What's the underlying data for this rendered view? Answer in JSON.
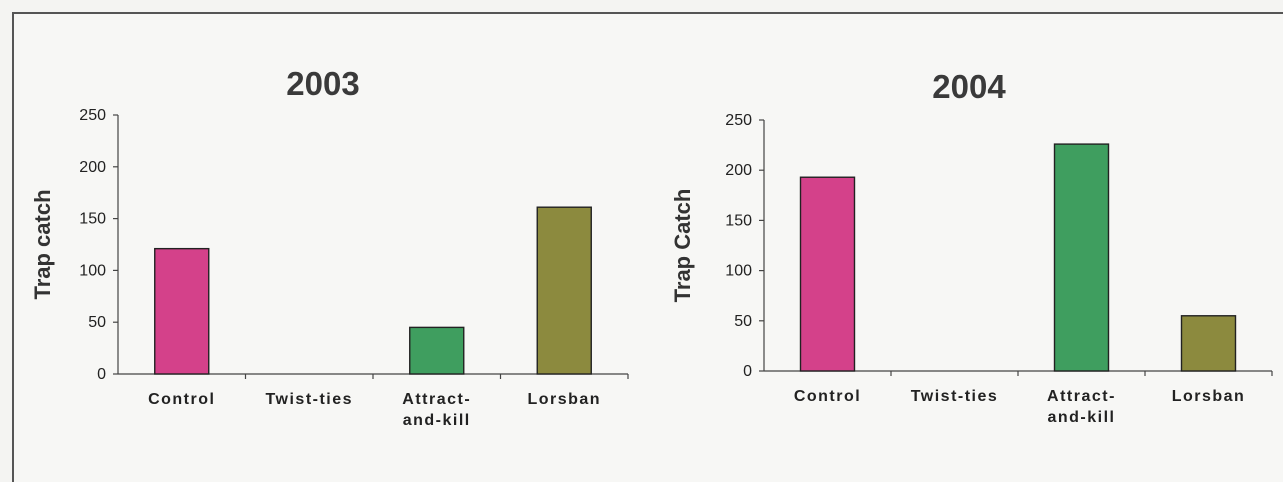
{
  "chart_data": [
    {
      "type": "bar",
      "title": "2003",
      "ylabel": "Trap catch",
      "xlabel": "",
      "ylim": [
        0,
        250
      ],
      "yticks": [
        0,
        50,
        100,
        150,
        200,
        250
      ],
      "categories": [
        "Control",
        "Twist-ties",
        "Attract-\nand-kill",
        "Lorsban"
      ],
      "values": [
        121,
        0,
        45,
        161
      ],
      "colors": [
        "#d4418a",
        "#d4418a",
        "#3f9e5f",
        "#8c8a3e"
      ],
      "grid": false,
      "legend": "none"
    },
    {
      "type": "bar",
      "title": "2004",
      "ylabel": "Trap Catch",
      "xlabel": "",
      "ylim": [
        0,
        250
      ],
      "yticks": [
        0,
        50,
        100,
        150,
        200,
        250
      ],
      "categories": [
        "Control",
        "Twist-ties",
        "Attract-\nand-kill",
        "Lorsban"
      ],
      "values": [
        193,
        0,
        226,
        55
      ],
      "colors": [
        "#d4418a",
        "#d4418a",
        "#3f9e5f",
        "#8c8a3e"
      ],
      "grid": false,
      "legend": "none"
    }
  ]
}
